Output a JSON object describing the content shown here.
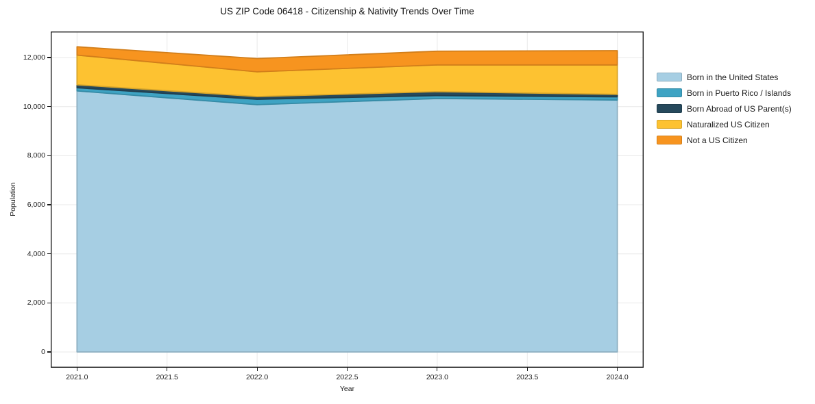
{
  "figure": {
    "title": "US ZIP Code 06418 - Citizenship & Nativity Trends Over Time",
    "xlabel": "Year",
    "ylabel": "Population"
  },
  "chart_data": {
    "type": "area",
    "stacked": true,
    "title": "US ZIP Code 06418 - Citizenship & Nativity Trends Over Time",
    "xlabel": "Year",
    "ylabel": "Population",
    "x": [
      2021,
      2022,
      2023,
      2024
    ],
    "series": [
      {
        "name": "Born in the United States",
        "color": "#A6CEE3",
        "values": [
          10640,
          10080,
          10330,
          10270
        ]
      },
      {
        "name": "Born in Puerto Rico / Islands",
        "color": "#3EA3C3",
        "values": [
          130,
          220,
          120,
          130
        ]
      },
      {
        "name": "Born Abroad of US Parent(s)",
        "color": "#26495C",
        "values": [
          120,
          110,
          160,
          100
        ]
      },
      {
        "name": "Naturalized US Citizen",
        "color": "#FDC231",
        "values": [
          1210,
          1010,
          1090,
          1200
        ]
      },
      {
        "name": "Not a US Citizen",
        "color": "#F7941F",
        "values": [
          340,
          540,
          560,
          580
        ]
      }
    ],
    "totals": [
      12440,
      11960,
      12260,
      12280
    ],
    "xlim": [
      2020.854,
      2024.146
    ],
    "ylim": [
      -641,
      13062
    ],
    "xticks": {
      "values": [
        2021.0,
        2021.5,
        2022.0,
        2022.5,
        2023.0,
        2023.5,
        2024.0
      ],
      "labels": [
        "2021.0",
        "2021.5",
        "2022.0",
        "2022.5",
        "2023.0",
        "2023.5",
        "2024.0"
      ]
    },
    "yticks": {
      "values": [
        0,
        2000,
        4000,
        6000,
        8000,
        10000,
        12000
      ],
      "labels": [
        "0",
        "2,000",
        "4,000",
        "6,000",
        "8,000",
        "10,000",
        "12,000"
      ]
    },
    "grid": true,
    "legend_position": "right-of-plot"
  },
  "colors": {
    "background": "#ffffff",
    "grid": "#e8e8e8",
    "spine": "#1a1a1a",
    "text": "#1a1a1a"
  }
}
